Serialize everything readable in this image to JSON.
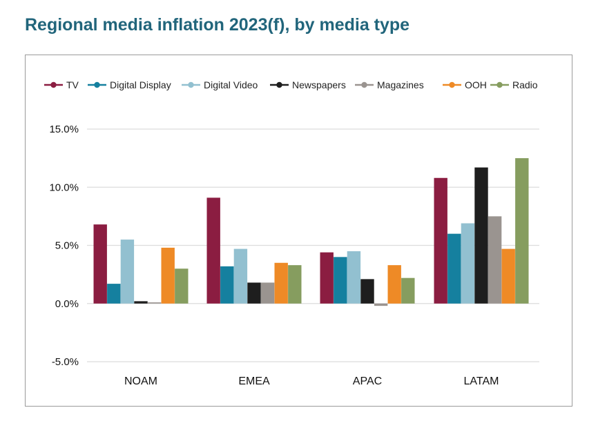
{
  "title": "Regional media inflation 2023(f), by media type",
  "chart_data": {
    "type": "bar",
    "title": "Regional media inflation 2023(f), by media type",
    "xlabel": "",
    "ylabel": "",
    "ylim": [
      -5,
      15
    ],
    "yticks": [
      15,
      10,
      5,
      0,
      -5
    ],
    "ytick_labels": [
      "15.0%",
      "10.0%",
      "5.0%",
      "0.0%",
      "-5.0%"
    ],
    "categories": [
      "NOAM",
      "EMEA",
      "APAC",
      "LATAM"
    ],
    "legend_position": "top",
    "series": [
      {
        "name": "TV",
        "color": "#8b1d41",
        "values": [
          6.8,
          9.1,
          4.4,
          10.8
        ]
      },
      {
        "name": "Digital Display",
        "color": "#15809f",
        "values": [
          1.7,
          3.2,
          4.0,
          6.0
        ]
      },
      {
        "name": "Digital Video",
        "color": "#92c0d0",
        "values": [
          5.5,
          4.7,
          4.5,
          6.9
        ]
      },
      {
        "name": "Newspapers",
        "color": "#1e1e1e",
        "values": [
          0.2,
          1.8,
          2.1,
          11.7
        ]
      },
      {
        "name": "Magazines",
        "color": "#9a9490",
        "values": [
          0.1,
          1.8,
          -0.2,
          7.5
        ]
      },
      {
        "name": "OOH",
        "color": "#ee8a26",
        "values": [
          4.8,
          3.5,
          3.3,
          4.7
        ]
      },
      {
        "name": "Radio",
        "color": "#869d5f",
        "values": [
          3.0,
          3.3,
          2.2,
          12.5
        ]
      }
    ]
  }
}
